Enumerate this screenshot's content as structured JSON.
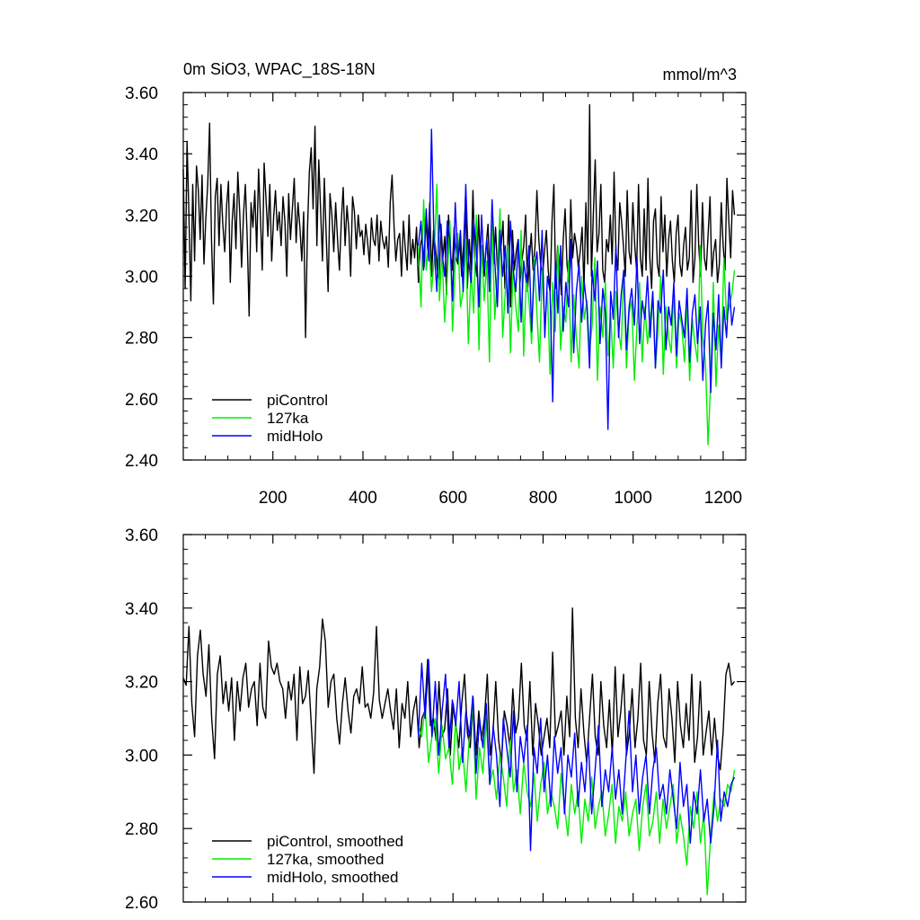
{
  "colors": {
    "piControl": "#000000",
    "127ka": "#00ee00",
    "midHolo": "#0000ff",
    "frame": "#000000",
    "background": "#ffffff"
  },
  "chart_data": [
    {
      "type": "line",
      "title": "0m SiO3, WPAC_18S-18N",
      "units": "mmol/m^3",
      "xlabel": "",
      "ylabel": "",
      "xlim": [
        1,
        1250
      ],
      "ylim": [
        2.4,
        3.6
      ],
      "xticks": [
        200,
        400,
        600,
        800,
        1000,
        1200
      ],
      "xtick_labels": [
        "200",
        "400",
        "600",
        "800",
        "1000",
        "1200"
      ],
      "yticks": [
        2.4,
        2.6,
        2.8,
        3.0,
        3.2,
        3.4,
        3.6
      ],
      "ytick_labels": [
        "2.40",
        "2.60",
        "2.80",
        "3.00",
        "3.20",
        "3.40",
        "3.60"
      ],
      "legend_position": "bottom-left",
      "series": [
        {
          "name": "piControl",
          "key": "piControl",
          "x_start": 1,
          "x_end": 1225,
          "values": [
            3.35,
            2.96,
            3.44,
            3.2,
            2.92,
            3.3,
            3.05,
            3.36,
            3.28,
            3.12,
            3.33,
            3.04,
            3.19,
            3.3,
            3.5,
            3.12,
            2.91,
            3.26,
            3.32,
            3.1,
            3.3,
            3.17,
            3.08,
            3.23,
            3.31,
            2.98,
            3.18,
            3.27,
            3.09,
            3.34,
            3.21,
            3.03,
            3.2,
            3.3,
            3.12,
            2.87,
            3.24,
            3.16,
            3.28,
            3.08,
            3.35,
            3.2,
            3.02,
            3.37,
            3.25,
            3.13,
            3.3,
            3.05,
            3.19,
            3.28,
            3.15,
            3.21,
            3.1,
            3.26,
            3.18,
            3.0,
            3.27,
            3.12,
            3.22,
            3.32,
            3.11,
            3.24,
            3.16,
            3.05,
            3.21,
            2.8,
            3.15,
            3.34,
            3.42,
            3.22,
            3.49,
            3.1,
            3.38,
            3.22,
            3.05,
            3.32,
            3.13,
            2.95,
            3.27,
            3.2,
            3.08,
            3.24,
            3.12,
            3.02,
            3.18,
            3.29,
            3.1,
            3.23,
            3.15,
            3.0,
            3.26,
            3.21,
            3.09,
            3.2,
            3.13,
            3.15,
            3.07,
            3.17,
            3.11,
            3.04,
            3.19,
            3.12,
            3.1,
            3.2,
            3.05,
            3.18,
            3.12,
            3.09,
            3.13,
            3.03,
            3.24,
            3.33,
            3.17,
            3.05,
            3.12,
            3.14,
            3.0,
            3.18,
            3.09,
            3.02,
            3.2,
            3.04,
            3.12,
            3.06,
            3.16,
            2.98,
            3.1,
            3.13,
            3.03,
            3.19,
            3.08,
            3.24,
            3.0,
            3.15,
            3.1,
            3.02,
            2.99,
            3.17,
            3.06,
            3.13,
            2.94,
            3.2,
            3.08,
            3.02,
            3.16,
            3.06,
            3.04,
            3.12,
            3.0,
            3.1,
            3.26,
            2.96,
            3.12,
            3.02,
            3.28,
            3.06,
            3.0,
            3.2,
            3.04,
            3.1,
            3.0,
            3.1,
            3.17,
            2.98,
            3.12,
            3.04,
            3.16,
            3.02,
            3.08,
            3.1,
            3.18,
            2.96,
            3.03,
            3.2,
            2.9,
            3.15,
            3.02,
            3.08,
            3.12,
            2.98,
            3.05,
            3.1,
            3.2,
            2.95,
            3.06,
            3.14,
            3.02,
            3.1,
            3.28,
            3.12,
            3.04,
            3.0,
            3.08,
            3.15,
            3.02,
            2.95,
            3.18,
            3.3,
            2.96,
            3.1,
            3.03,
            2.94,
            3.12,
            3.22,
            3.04,
            2.98,
            3.25,
            3.06,
            3.14,
            3.1,
            3.03,
            3.08,
            3.16,
            2.96,
            3.24,
            3.04,
            3.56,
            3.0,
            3.2,
            3.38,
            3.08,
            3.14,
            3.3,
            3.02,
            2.98,
            3.12,
            3.08,
            3.2,
            3.04,
            3.34,
            3.08,
            3.02,
            3.24,
            3.18,
            3.1,
            3.0,
            3.28,
            3.08,
            3.04,
            3.24,
            3.1,
            3.02,
            3.3,
            3.06,
            3.0,
            3.22,
            3.02,
            3.32,
            3.06,
            2.96,
            3.18,
            3.22,
            3.04,
            3.0,
            3.26,
            3.08,
            3.2,
            3.0,
            3.12,
            3.18,
            3.05,
            2.98,
            3.14,
            3.2,
            3.04,
            3.0,
            3.1,
            3.16,
            3.02,
            3.06,
            3.28,
            2.98,
            3.06,
            3.3,
            3.1,
            3.0,
            3.24,
            3.06,
            3.02,
            3.14,
            3.26,
            3.0,
            3.08,
            3.12,
            2.98,
            3.04,
            3.24,
            3.1,
            3.02,
            3.32,
            3.18,
            3.06,
            3.28,
            3.2
          ]
        },
        {
          "name": "127ka",
          "key": "127ka",
          "x_start": 523,
          "x_end": 1225,
          "values": [
            3.1,
            2.9,
            3.25,
            3.02,
            3.12,
            2.95,
            3.05,
            3.3,
            2.92,
            3.08,
            2.85,
            3.0,
            3.18,
            2.82,
            3.05,
            3.14,
            2.9,
            2.95,
            3.12,
            2.78,
            3.02,
            2.88,
            3.2,
            2.76,
            3.1,
            2.92,
            3.05,
            2.72,
            3.18,
            2.86,
            3.0,
            3.22,
            2.8,
            2.95,
            3.1,
            2.75,
            3.04,
            2.9,
            2.82,
            3.15,
            2.74,
            3.0,
            2.92,
            2.78,
            3.06,
            2.88,
            2.72,
            3.02,
            2.84,
            2.95,
            2.68,
            2.98,
            2.82,
            3.1,
            2.76,
            2.9,
            2.85,
            3.05,
            2.72,
            2.94,
            2.8,
            2.7,
            3.0,
            2.86,
            2.92,
            2.76,
            2.84,
            3.06,
            2.66,
            2.9,
            2.8,
            2.98,
            2.74,
            2.88,
            2.7,
            2.95,
            2.82,
            2.76,
            3.02,
            2.7,
            2.88,
            2.92,
            2.66,
            2.84,
            2.98,
            2.72,
            2.9,
            2.78,
            2.86,
            2.95,
            2.7,
            2.82,
            3.0,
            2.68,
            2.9,
            2.8,
            2.75,
            2.96,
            2.7,
            2.88,
            2.84,
            2.72,
            2.92,
            2.66,
            2.86,
            2.78,
            2.72,
            3.1,
            2.8,
            2.72,
            2.45,
            2.66,
            2.98,
            2.64,
            2.84,
            2.72,
            3.06,
            2.86,
            2.9,
            2.94,
            3.02
          ]
        },
        {
          "name": "midHolo",
          "key": "midHolo",
          "x_start": 523,
          "x_end": 1225,
          "values": [
            3.1,
            3.18,
            3.02,
            3.22,
            3.05,
            3.48,
            3.1,
            2.95,
            3.2,
            3.08,
            3.0,
            3.18,
            3.12,
            2.92,
            3.24,
            3.05,
            3.15,
            2.95,
            3.3,
            3.06,
            2.98,
            3.18,
            3.1,
            2.9,
            3.2,
            3.02,
            3.12,
            2.95,
            3.25,
            3.05,
            2.9,
            3.15,
            3.0,
            3.1,
            2.88,
            3.18,
            3.02,
            2.95,
            3.12,
            2.85,
            3.05,
            2.98,
            3.1,
            2.82,
            3.02,
            3.08,
            2.92,
            3.15,
            2.8,
            3.0,
            2.95,
            2.59,
            3.05,
            2.88,
            3.1,
            2.82,
            2.98,
            2.9,
            3.12,
            2.75,
            2.95,
            3.04,
            2.85,
            2.98,
            2.9,
            2.7,
            3.02,
            2.92,
            3.05,
            2.78,
            2.96,
            2.88,
            2.5,
            2.95,
            2.86,
            3.1,
            2.8,
            2.94,
            3.02,
            2.76,
            2.9,
            2.96,
            2.84,
            3.06,
            2.78,
            2.92,
            2.86,
            3.0,
            2.8,
            2.95,
            2.7,
            2.92,
            2.88,
            3.02,
            2.76,
            2.9,
            2.84,
            2.98,
            2.74,
            2.92,
            2.86,
            2.8,
            2.96,
            2.72,
            2.88,
            2.94,
            2.78,
            2.9,
            2.66,
            2.84,
            2.92,
            2.62,
            2.88,
            2.76,
            2.94,
            2.7,
            2.9,
            2.8,
            2.98,
            2.84,
            2.9
          ]
        }
      ]
    },
    {
      "type": "line",
      "title": "",
      "units": "",
      "xlabel": "",
      "ylabel": "",
      "xlim": [
        1,
        1250
      ],
      "ylim": [
        2.6,
        3.6
      ],
      "xticks": [
        200,
        400,
        600,
        800,
        1000,
        1200
      ],
      "xtick_labels": [],
      "yticks": [
        2.6,
        2.8,
        3.0,
        3.2,
        3.4,
        3.6
      ],
      "ytick_labels": [
        "2.60",
        "2.80",
        "3.00",
        "3.20",
        "3.40",
        "3.60"
      ],
      "legend_position": "bottom-left",
      "series": [
        {
          "name": "piControl, smoothed",
          "key": "piControl",
          "x_start": 1,
          "x_end": 1225,
          "values": [
            3.21,
            3.19,
            3.35,
            3.14,
            3.05,
            3.27,
            3.34,
            3.22,
            3.16,
            3.3,
            3.1,
            2.99,
            3.22,
            3.27,
            3.14,
            3.2,
            3.12,
            3.21,
            3.04,
            3.2,
            3.12,
            3.21,
            3.25,
            3.13,
            3.18,
            3.2,
            3.08,
            3.25,
            3.13,
            3.1,
            3.31,
            3.24,
            3.22,
            3.25,
            3.2,
            3.18,
            3.1,
            3.2,
            3.15,
            3.22,
            3.04,
            3.24,
            3.14,
            3.16,
            3.23,
            3.09,
            2.95,
            3.18,
            3.24,
            3.37,
            3.31,
            3.13,
            3.2,
            3.22,
            3.1,
            3.03,
            3.14,
            3.21,
            3.12,
            3.06,
            3.16,
            3.18,
            3.14,
            3.24,
            3.13,
            3.14,
            3.1,
            3.17,
            3.35,
            3.15,
            3.1,
            3.14,
            3.18,
            3.12,
            3.07,
            3.18,
            3.02,
            3.14,
            3.1,
            3.2,
            3.05,
            3.12,
            3.16,
            3.02,
            3.1,
            3.12,
            3.26,
            3.08,
            3.1,
            3.04,
            3.2,
            3.05,
            3.07,
            3.18,
            3.0,
            3.14,
            3.08,
            3.02,
            3.14,
            3.22,
            3.06,
            3.02,
            3.16,
            3.0,
            3.12,
            3.04,
            3.1,
            3.22,
            3.0,
            3.06,
            3.2,
            3.04,
            2.98,
            3.12,
            3.08,
            3.02,
            3.18,
            3.06,
            3.1,
            3.25,
            3.08,
            3.04,
            3.2,
            3.0,
            3.14,
            3.08,
            3.0,
            3.05,
            3.1,
            3.02,
            3.28,
            3.05,
            3.08,
            3.12,
            3.0,
            3.16,
            3.05,
            3.4,
            3.1,
            3.02,
            3.18,
            3.06,
            2.98,
            3.1,
            3.22,
            3.05,
            3.0,
            3.2,
            3.08,
            3.02,
            3.15,
            3.0,
            3.24,
            3.05,
            3.12,
            3.22,
            3.0,
            3.06,
            3.18,
            3.02,
            3.1,
            3.25,
            3.04,
            3.0,
            3.2,
            3.06,
            2.98,
            3.14,
            3.22,
            3.05,
            3.02,
            3.18,
            3.1,
            2.98,
            3.2,
            3.08,
            3.02,
            3.14,
            3.04,
            3.22,
            2.98,
            3.05,
            3.2,
            3.0,
            3.06,
            3.12,
            3.0,
            3.1,
            3.0,
            2.96,
            3.06,
            3.22,
            3.25,
            3.19,
            3.2
          ]
        },
        {
          "name": "127ka, smoothed",
          "key": "127ka",
          "x_start": 523,
          "x_end": 1225,
          "values": [
            3.08,
            3.05,
            3.13,
            2.98,
            3.05,
            3.1,
            2.95,
            3.08,
            2.99,
            3.02,
            2.92,
            3.1,
            2.96,
            3.02,
            2.9,
            3.05,
            3.14,
            2.88,
            3.02,
            2.95,
            3.1,
            2.92,
            2.96,
            2.88,
            3.0,
            2.94,
            2.86,
            3.04,
            2.9,
            2.96,
            2.84,
            2.98,
            2.9,
            2.86,
            2.95,
            2.82,
            2.92,
            2.98,
            2.84,
            2.9,
            2.86,
            2.8,
            2.95,
            2.86,
            2.78,
            2.92,
            2.84,
            2.9,
            2.76,
            2.88,
            2.82,
            2.94,
            2.8,
            2.86,
            2.9,
            2.78,
            2.84,
            2.92,
            2.76,
            2.86,
            2.82,
            2.9,
            2.78,
            2.84,
            2.88,
            2.74,
            2.86,
            2.92,
            2.78,
            2.82,
            2.9,
            2.76,
            2.88,
            2.8,
            2.86,
            2.92,
            2.76,
            2.84,
            2.78,
            2.7,
            2.86,
            2.8,
            2.9,
            2.76,
            2.84,
            2.62,
            2.78,
            2.9,
            2.82,
            2.88,
            2.86,
            2.92,
            2.9,
            2.96
          ]
        },
        {
          "name": "midHolo, smoothed",
          "key": "midHolo",
          "x_start": 523,
          "x_end": 1225,
          "values": [
            3.05,
            3.25,
            3.1,
            3.26,
            3.05,
            3.2,
            3.0,
            3.12,
            3.22,
            3.02,
            3.15,
            3.08,
            3.2,
            2.98,
            3.12,
            3.05,
            3.16,
            2.95,
            3.1,
            3.02,
            3.14,
            2.92,
            3.08,
            3.0,
            2.86,
            3.1,
            3.02,
            2.94,
            3.12,
            2.9,
            3.05,
            2.98,
            3.08,
            2.74,
            3.02,
            2.95,
            3.1,
            2.9,
            3.0,
            2.86,
            3.05,
            2.95,
            3.02,
            2.84,
            3.0,
            2.94,
            3.06,
            2.86,
            2.98,
            2.9,
            3.04,
            2.84,
            2.96,
            3.08,
            2.86,
            2.96,
            2.9,
            3.02,
            2.88,
            2.96,
            2.84,
            2.98,
            3.12,
            2.9,
            3.0,
            2.84,
            2.94,
            3.0,
            2.84,
            2.96,
            3.02,
            2.88,
            2.92,
            2.84,
            2.96,
            2.88,
            2.8,
            2.98,
            2.86,
            2.92,
            2.76,
            2.9,
            2.84,
            2.96,
            2.82,
            2.88,
            2.76,
            2.86,
            3.04,
            2.82,
            2.9,
            2.86,
            2.92,
            2.94
          ]
        }
      ]
    }
  ]
}
